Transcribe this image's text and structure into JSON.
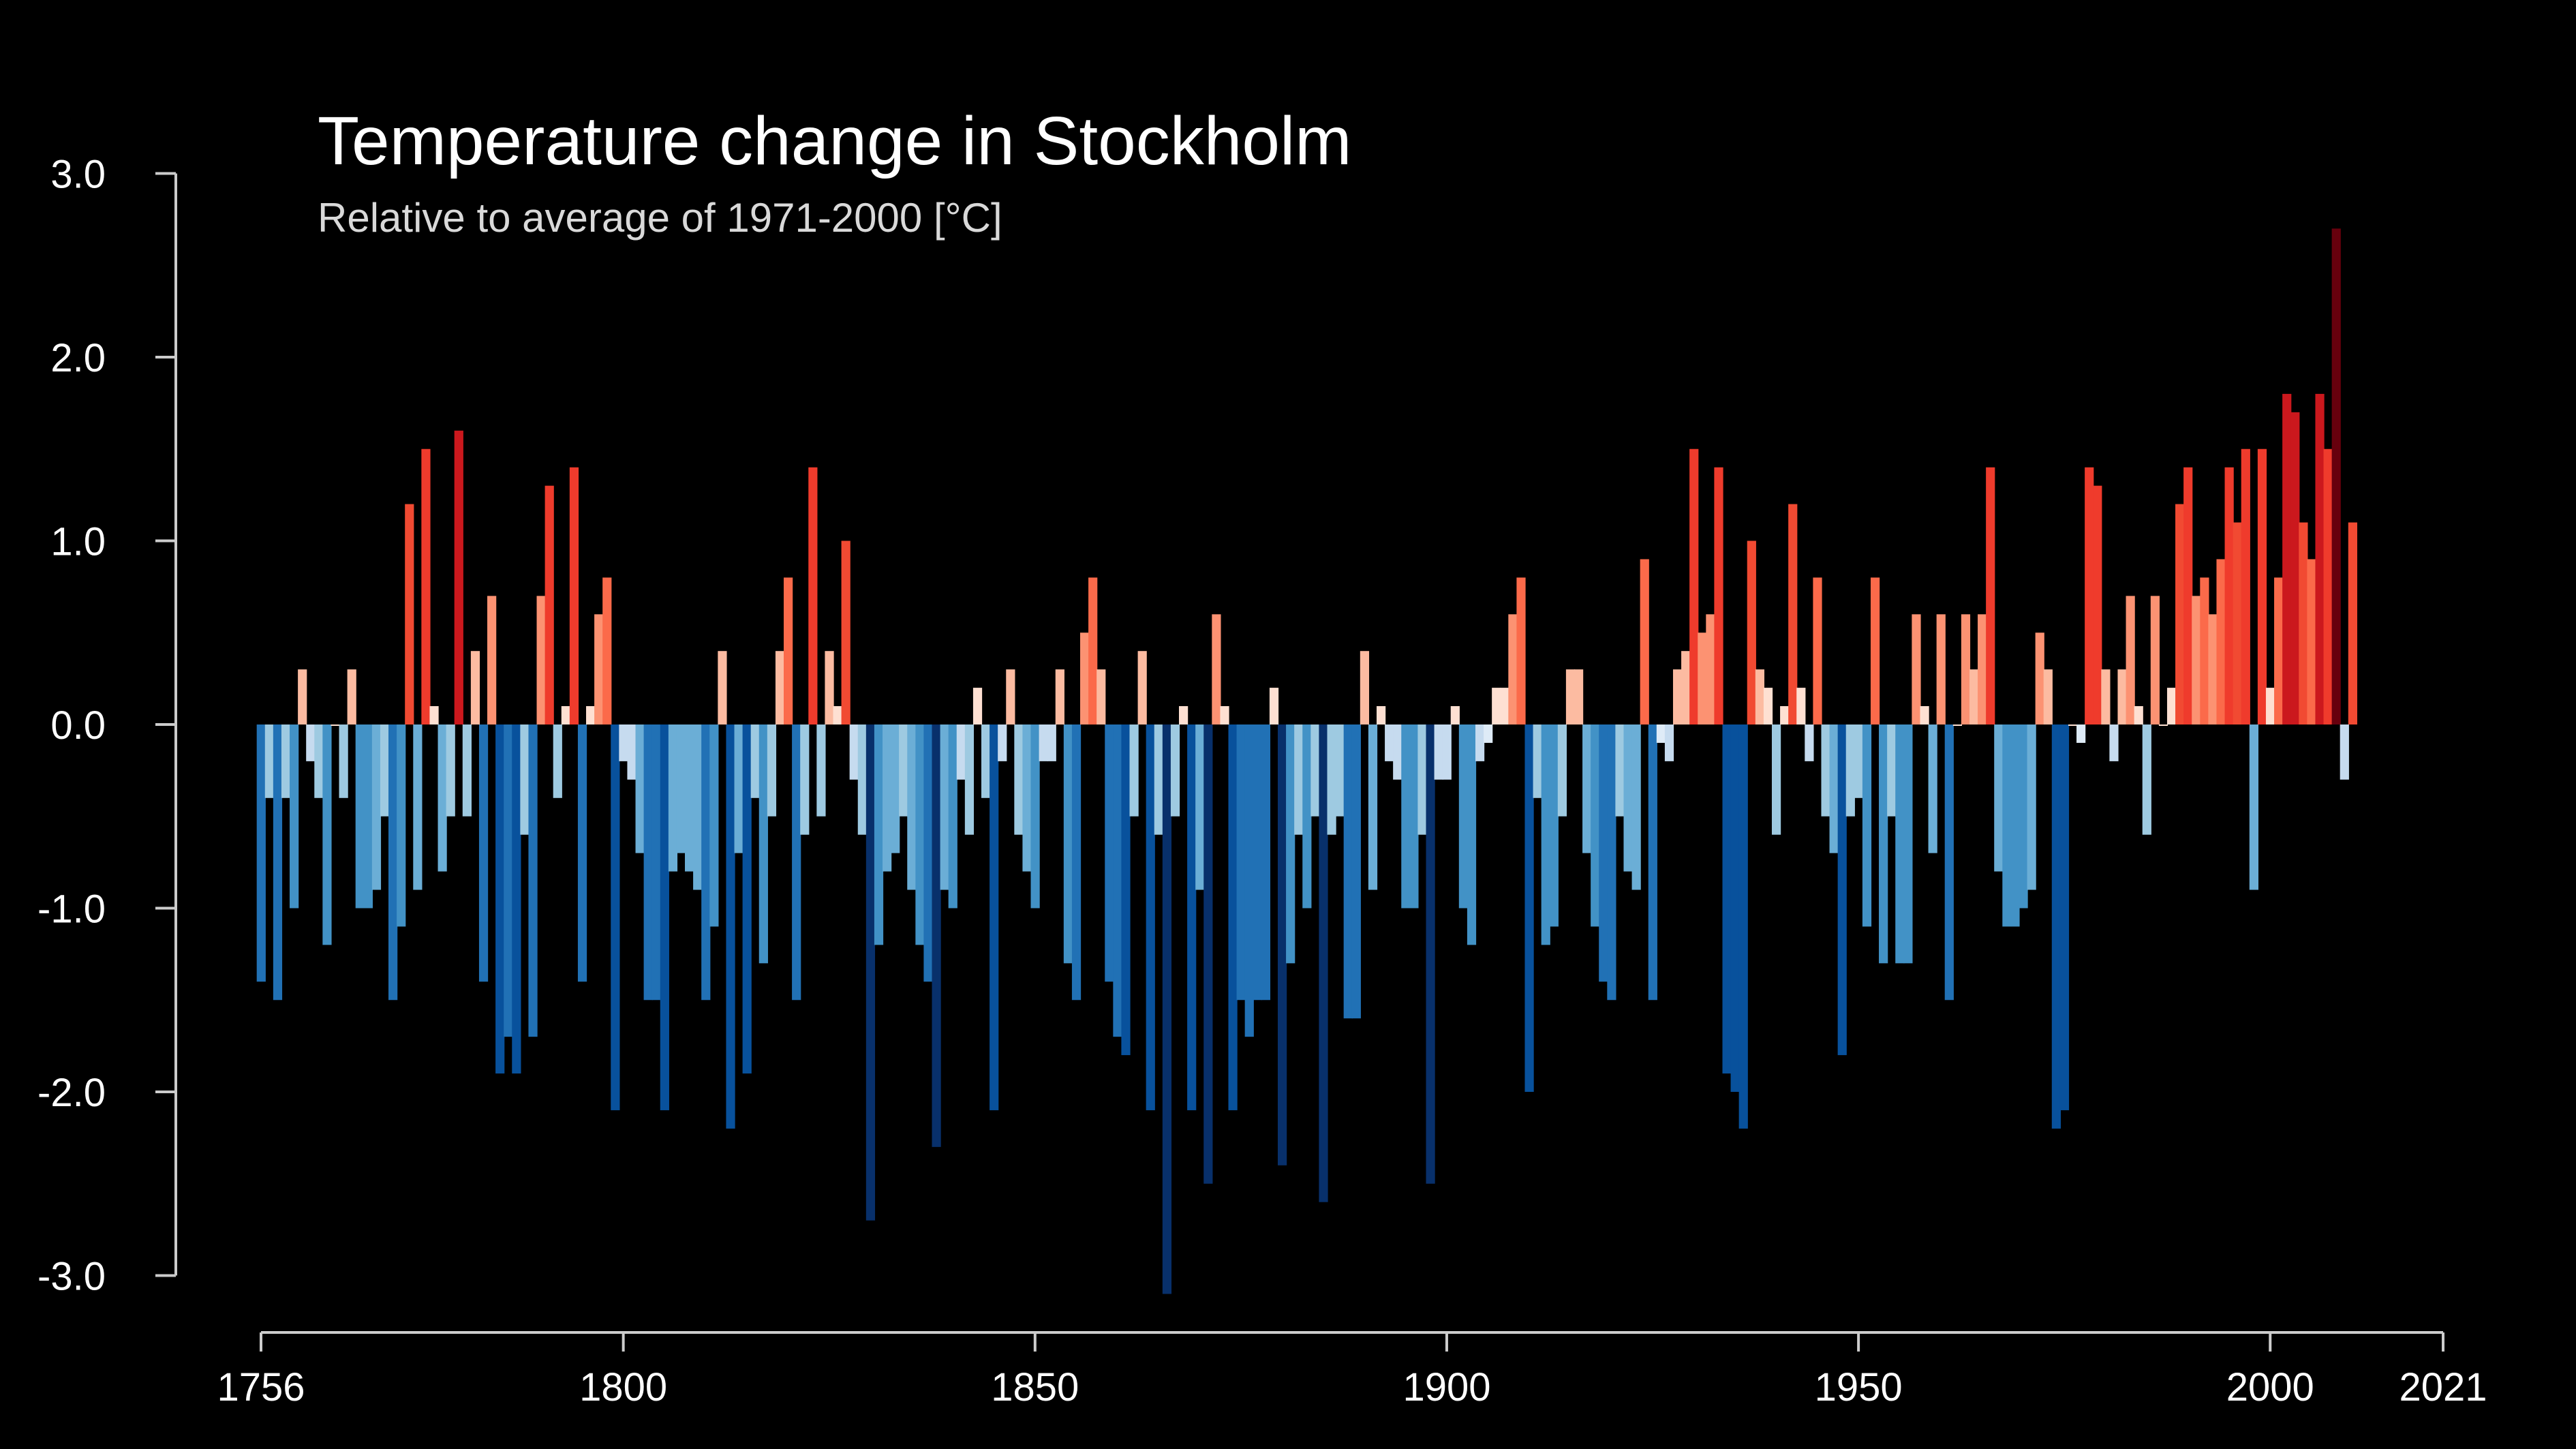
{
  "chart_data": {
    "type": "bar",
    "title": "Temperature change in Stockholm",
    "subtitle": "Relative to average of 1971-2000  [°C]",
    "ylim": [
      -3.0,
      3.0
    ],
    "yticks": [
      3.0,
      2.0,
      1.0,
      0.0,
      -1.0,
      -2.0,
      -3.0
    ],
    "ytick_labels": [
      "3.0",
      "2.0",
      "1.0",
      "0.0",
      "-1.0",
      "-2.0",
      "-3.0"
    ],
    "xlim": [
      1756,
      2021
    ],
    "xticks": [
      1756,
      1800,
      1850,
      1900,
      1950,
      2000,
      2021
    ],
    "xtick_labels": [
      "1756",
      "1800",
      "1850",
      "1900",
      "1950",
      "2000",
      "2021"
    ],
    "start_year": 1756,
    "values": [
      -1.4,
      -0.4,
      -1.5,
      -0.4,
      -1.0,
      0.3,
      -0.2,
      -0.4,
      -1.2,
      0.0,
      -0.4,
      0.3,
      -1.0,
      -1.0,
      -0.9,
      -0.5,
      -1.5,
      -1.1,
      1.2,
      -0.9,
      1.5,
      0.1,
      -0.8,
      -0.5,
      1.6,
      -0.5,
      0.4,
      -1.4,
      0.7,
      -1.9,
      -1.7,
      -1.9,
      -0.6,
      -1.7,
      0.7,
      1.3,
      -0.4,
      0.1,
      1.4,
      -1.4,
      0.1,
      0.6,
      0.8,
      -2.1,
      -0.2,
      -0.3,
      -0.7,
      -1.5,
      -1.5,
      -2.1,
      -0.8,
      -0.7,
      -0.8,
      -0.9,
      -1.5,
      -1.1,
      0.4,
      -2.2,
      -0.7,
      -1.9,
      -0.4,
      -1.3,
      -0.5,
      0.4,
      0.8,
      -1.5,
      -0.6,
      1.4,
      -0.5,
      0.4,
      0.1,
      1.0,
      -0.3,
      -0.6,
      -2.7,
      -1.2,
      -0.8,
      -0.7,
      -0.5,
      -0.9,
      -1.2,
      -1.4,
      -2.3,
      -0.9,
      -1.0,
      -0.3,
      -0.6,
      0.2,
      -0.4,
      -2.1,
      -0.2,
      0.3,
      -0.6,
      -0.8,
      -1.0,
      -0.2,
      -0.2,
      0.3,
      -1.3,
      -1.5,
      0.5,
      0.8,
      0.3,
      -1.4,
      -1.7,
      -1.8,
      -0.5,
      0.4,
      -2.1,
      -0.6,
      -3.1,
      -0.5,
      0.1,
      -2.1,
      -0.9,
      -2.5,
      0.6,
      0.1,
      -2.1,
      -1.5,
      -1.7,
      -1.5,
      -1.5,
      0.2,
      -2.4,
      -1.3,
      -0.6,
      -1.0,
      -0.5,
      -2.6,
      -0.6,
      -0.5,
      -1.6,
      -1.6,
      0.4,
      -0.9,
      0.1,
      -0.2,
      -0.3,
      -1.0,
      -1.0,
      -0.6,
      -2.5,
      -0.3,
      -0.3,
      0.1,
      -1.0,
      -1.2,
      -0.2,
      -0.1,
      0.2,
      0.2,
      0.6,
      0.8,
      -2.0,
      -0.4,
      -1.2,
      -1.1,
      -0.5,
      0.3,
      0.3,
      -0.7,
      -1.1,
      -1.4,
      -1.5,
      -0.5,
      -0.8,
      -0.9,
      0.9,
      -1.5,
      -0.1,
      -0.2,
      0.3,
      0.4,
      1.5,
      0.5,
      0.6,
      1.4,
      -1.9,
      -2.0,
      -2.2,
      1.0,
      0.3,
      0.2,
      -0.6,
      0.1,
      1.2,
      0.2,
      -0.2,
      0.8,
      -0.5,
      -0.7,
      -1.8,
      -0.5,
      -0.4,
      -1.1,
      0.8,
      -1.3,
      -0.5,
      -1.3,
      -1.3,
      0.6,
      0.1,
      -0.7,
      0.6,
      -1.5,
      0.0,
      0.6,
      0.3,
      0.6,
      1.4,
      -0.8,
      -1.1,
      -1.1,
      -1.0,
      -0.9,
      0.5,
      0.3,
      -2.2,
      -2.1,
      0.0,
      -0.1,
      1.4,
      1.3,
      0.3,
      -0.2,
      0.3,
      0.7,
      0.1,
      -0.6,
      0.7,
      0.0,
      0.2,
      1.2,
      1.4,
      0.7,
      0.8,
      0.6,
      0.9,
      1.4,
      1.1,
      1.5,
      -0.9,
      1.5,
      0.2,
      0.8,
      1.8,
      1.7,
      1.1,
      0.9,
      1.8,
      1.5,
      2.7,
      -0.3,
      1.1
    ]
  }
}
